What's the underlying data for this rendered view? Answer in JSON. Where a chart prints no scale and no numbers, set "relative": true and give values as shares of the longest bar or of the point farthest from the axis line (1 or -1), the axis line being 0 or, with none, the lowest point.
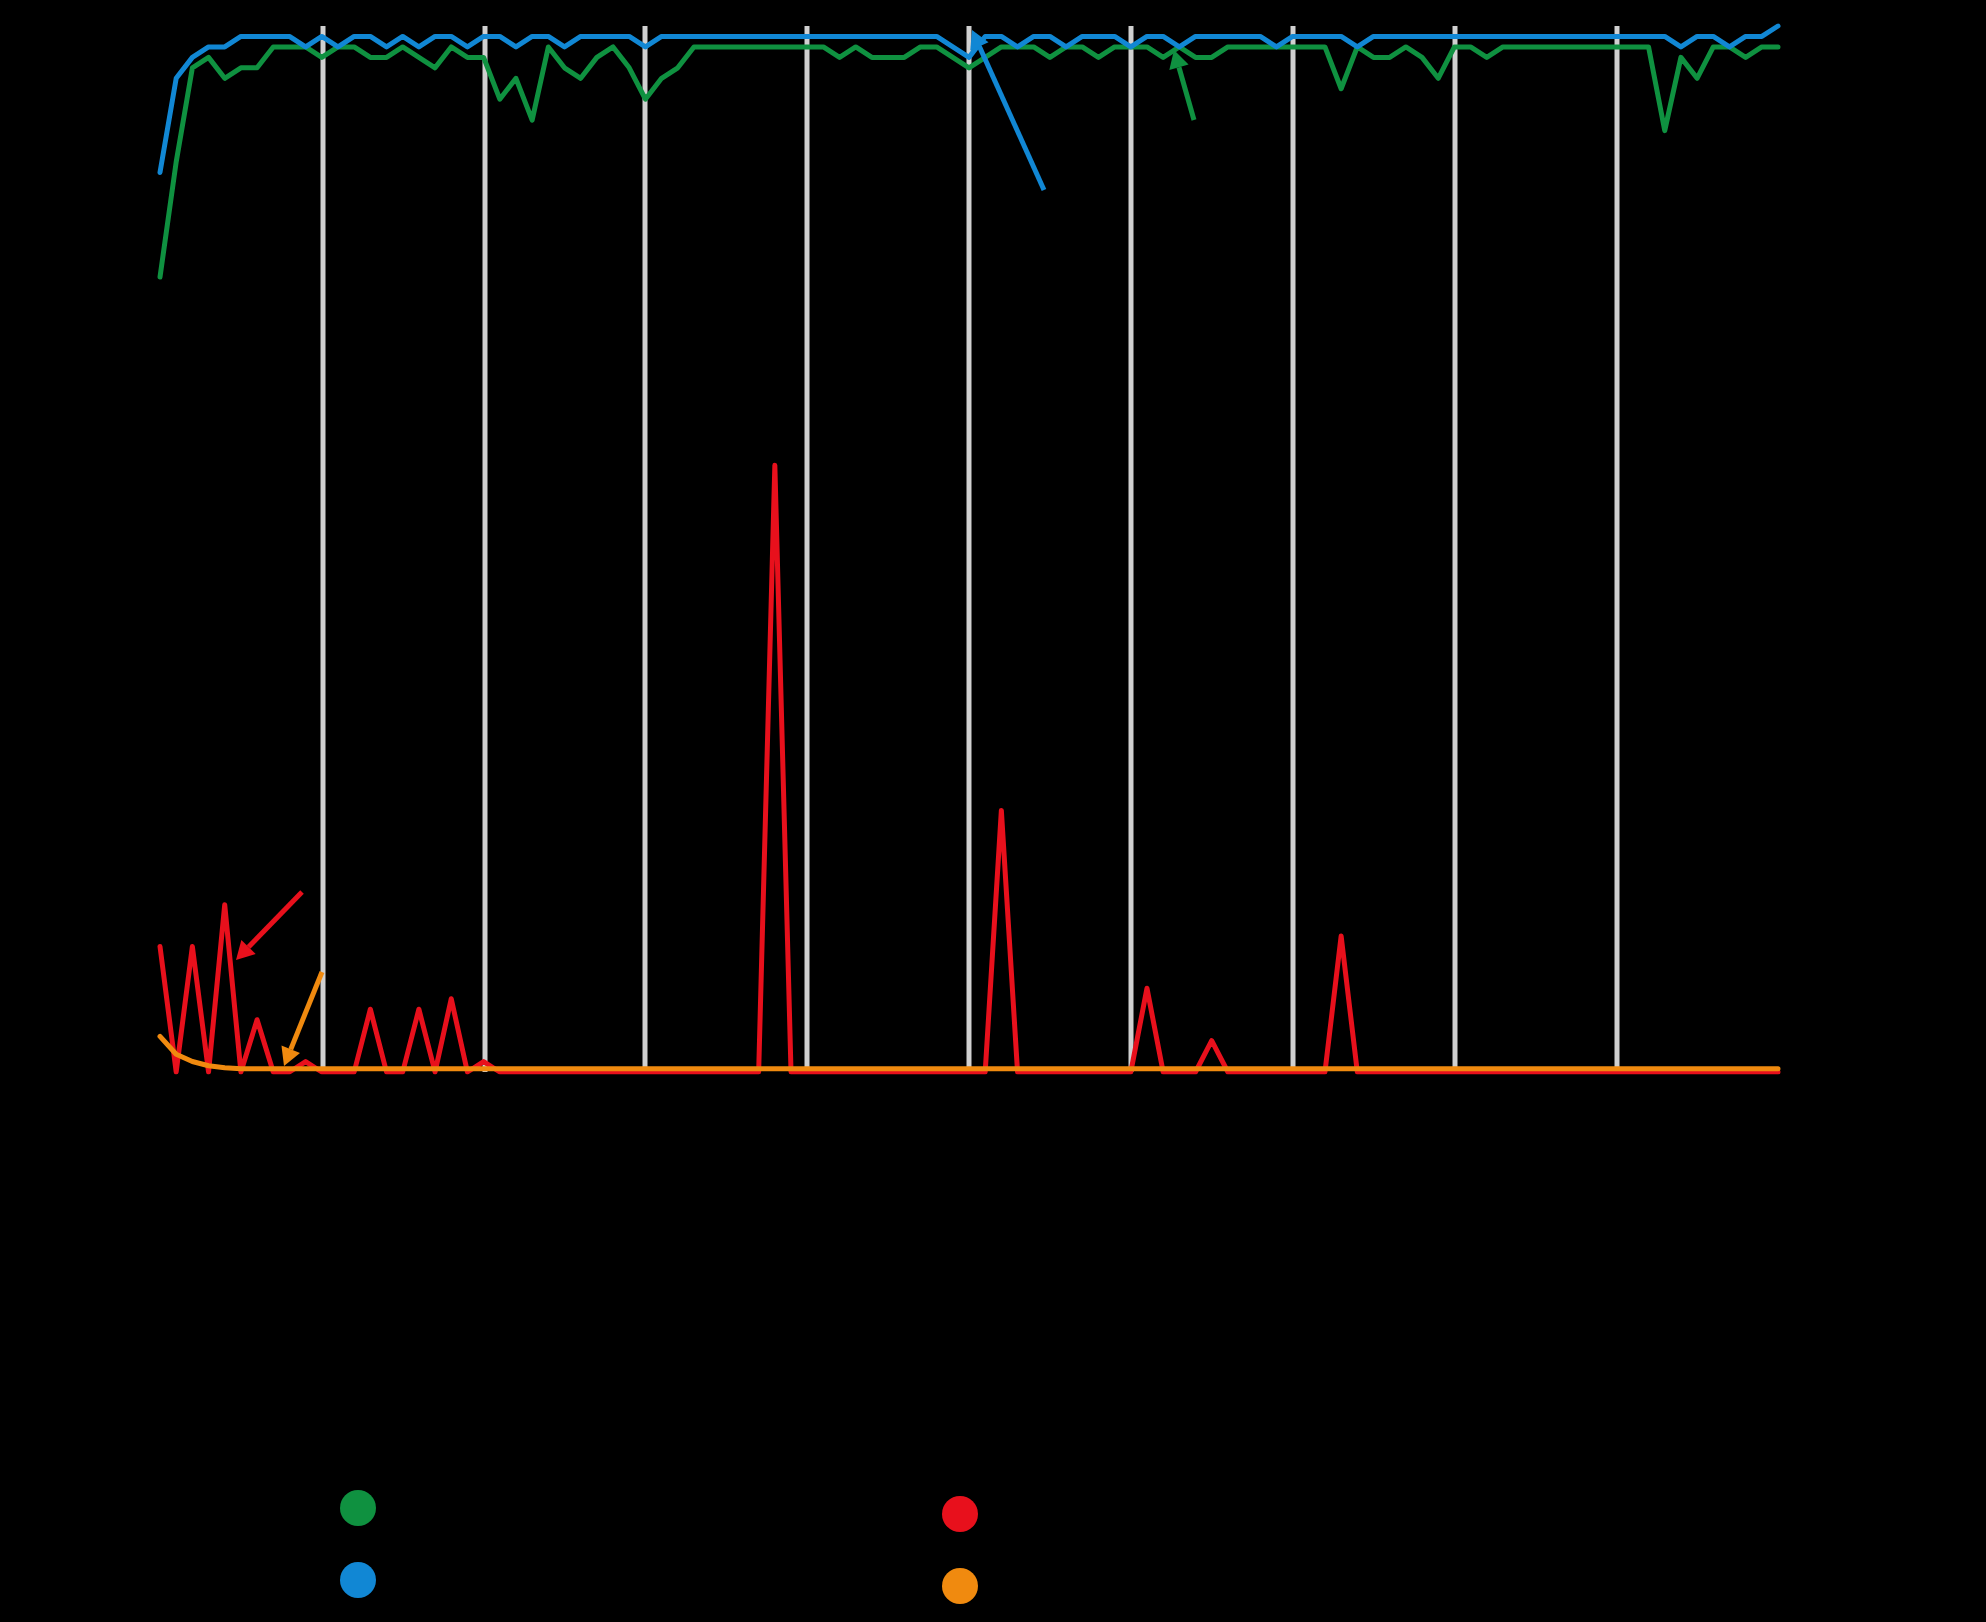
{
  "chart_data": {
    "type": "line",
    "relative": true,
    "grid": "x",
    "categories": [
      null,
      null,
      null,
      null,
      null,
      null,
      null,
      null,
      null,
      null,
      null,
      null,
      null,
      null,
      null,
      null,
      null,
      null,
      null,
      null,
      null,
      null,
      null,
      null,
      null,
      null,
      null,
      null,
      null,
      null,
      null,
      null,
      null,
      null,
      null,
      null,
      null,
      null,
      null,
      null,
      null,
      null,
      null,
      null,
      null,
      null,
      null,
      null,
      null,
      null,
      null,
      null,
      null,
      null,
      null,
      null,
      null,
      null,
      null,
      null,
      null,
      null,
      null,
      null,
      null,
      null,
      null,
      null,
      null,
      null,
      null,
      null,
      null,
      null,
      null,
      null,
      null,
      null,
      null,
      null,
      null,
      null,
      null,
      null,
      null,
      null,
      null,
      null,
      null,
      null,
      null,
      null,
      null,
      null,
      null,
      null,
      null,
      null,
      null,
      null,
      null
    ],
    "series": [
      {
        "color": "#0f9140",
        "values": [
          0.76,
          0.87,
          0.96,
          0.97,
          0.95,
          0.96,
          0.96,
          0.98,
          0.98,
          0.98,
          0.97,
          0.98,
          0.98,
          0.97,
          0.97,
          0.98,
          0.97,
          0.96,
          0.98,
          0.97,
          0.97,
          0.93,
          0.95,
          0.91,
          0.98,
          0.96,
          0.95,
          0.97,
          0.98,
          0.96,
          0.93,
          0.95,
          0.96,
          0.98,
          0.98,
          0.98,
          0.98,
          0.98,
          0.98,
          0.98,
          0.98,
          0.98,
          0.97,
          0.98,
          0.97,
          0.97,
          0.97,
          0.98,
          0.98,
          0.97,
          0.96,
          0.97,
          0.98,
          0.98,
          0.98,
          0.97,
          0.98,
          0.98,
          0.97,
          0.98,
          0.98,
          0.98,
          0.97,
          0.98,
          0.97,
          0.97,
          0.98,
          0.98,
          0.98,
          0.98,
          0.98,
          0.98,
          0.98,
          0.94,
          0.98,
          0.97,
          0.97,
          0.98,
          0.97,
          0.95,
          0.98,
          0.98,
          0.97,
          0.98,
          0.98,
          0.98,
          0.98,
          0.98,
          0.98,
          0.98,
          0.98,
          0.98,
          0.98,
          0.9,
          0.97,
          0.95,
          0.98,
          0.98,
          0.97,
          0.98,
          0.98
        ]
      },
      {
        "color": "#1187d4",
        "values": [
          0.86,
          0.95,
          0.97,
          0.98,
          0.98,
          0.99,
          0.99,
          0.99,
          0.99,
          0.98,
          0.99,
          0.98,
          0.99,
          0.99,
          0.98,
          0.99,
          0.98,
          0.99,
          0.99,
          0.98,
          0.99,
          0.99,
          0.98,
          0.99,
          0.99,
          0.98,
          0.99,
          0.99,
          0.99,
          0.99,
          0.98,
          0.99,
          0.99,
          0.99,
          0.99,
          0.99,
          0.99,
          0.99,
          0.99,
          0.99,
          0.99,
          0.99,
          0.99,
          0.99,
          0.99,
          0.99,
          0.99,
          0.99,
          0.99,
          0.98,
          0.97,
          0.99,
          0.99,
          0.98,
          0.99,
          0.99,
          0.98,
          0.99,
          0.99,
          0.99,
          0.98,
          0.99,
          0.99,
          0.98,
          0.99,
          0.99,
          0.99,
          0.99,
          0.99,
          0.98,
          0.99,
          0.99,
          0.99,
          0.99,
          0.98,
          0.99,
          0.99,
          0.99,
          0.99,
          0.99,
          0.99,
          0.99,
          0.99,
          0.99,
          0.99,
          0.99,
          0.99,
          0.99,
          0.99,
          0.99,
          0.99,
          0.99,
          0.99,
          0.99,
          0.98,
          0.99,
          0.99,
          0.98,
          0.99,
          0.99,
          1
        ]
      },
      {
        "color": "#e8101c",
        "values": [
          0.12,
          0,
          0.12,
          0,
          0.16,
          0,
          0.05,
          0,
          0,
          0.01,
          0,
          0,
          0,
          0.06,
          0,
          0,
          0.06,
          0,
          0.07,
          0,
          0.01,
          0,
          0,
          0,
          0,
          0,
          0,
          0,
          0,
          0,
          0,
          0,
          0,
          0,
          0,
          0,
          0,
          0,
          0.58,
          0,
          0,
          0,
          0,
          0,
          0,
          0,
          0,
          0,
          0,
          0,
          0,
          0,
          0.25,
          0,
          0,
          0,
          0,
          0,
          0,
          0,
          0,
          0.08,
          0,
          0,
          0,
          0.03,
          0,
          0,
          0,
          0,
          0,
          0,
          0,
          0.13,
          0,
          0,
          0,
          0,
          0,
          0,
          0,
          0,
          0,
          0,
          0,
          0,
          0,
          0,
          0,
          0,
          0,
          0,
          0,
          0,
          0,
          0,
          0,
          0,
          0,
          0,
          0
        ]
      },
      {
        "color": "#f08a0f",
        "values": [
          0.034,
          0.017,
          0.01,
          0.006,
          0.004,
          0.003,
          0.003,
          0.003,
          0.003,
          0.003,
          0.003,
          0.003,
          0.003,
          0.003,
          0.003,
          0.003,
          0.003,
          0.003,
          0.003,
          0.003,
          0.003,
          0.003,
          0.003,
          0.003,
          0.003,
          0.003,
          0.003,
          0.003,
          0.003,
          0.003,
          0.003,
          0.003,
          0.003,
          0.003,
          0.003,
          0.003,
          0.003,
          0.003,
          0.003,
          0.003,
          0.003,
          0.003,
          0.003,
          0.003,
          0.003,
          0.003,
          0.003,
          0.003,
          0.003,
          0.003,
          0.003,
          0.003,
          0.003,
          0.003,
          0.003,
          0.003,
          0.003,
          0.003,
          0.003,
          0.003,
          0.003,
          0.003,
          0.003,
          0.003,
          0.003,
          0.003,
          0.003,
          0.003,
          0.003,
          0.003,
          0.003,
          0.003,
          0.003,
          0.003,
          0.003,
          0.003,
          0.003,
          0.003,
          0.003,
          0.003,
          0.003,
          0.003,
          0.003,
          0.003,
          0.003,
          0.003,
          0.003,
          0.003,
          0.003,
          0.003,
          0.003,
          0.003,
          0.003,
          0.003,
          0.003,
          0.003,
          0.003,
          0.003,
          0.003,
          0.003,
          0.003
        ]
      }
    ]
  }
}
